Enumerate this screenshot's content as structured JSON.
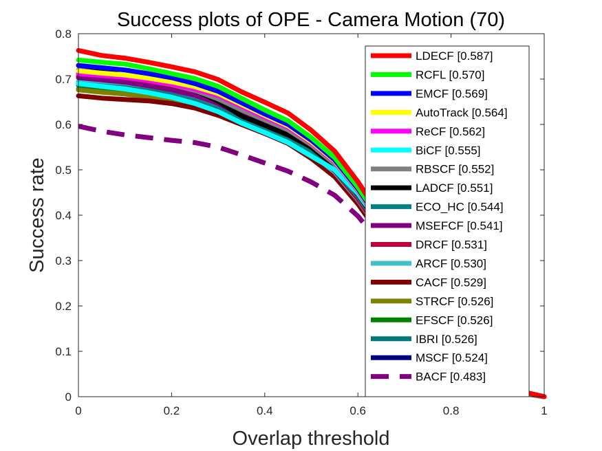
{
  "chart_data": {
    "type": "line",
    "title": "Success plots of OPE - Camera Motion (70)",
    "xlabel": "Overlap threshold",
    "ylabel": "Success rate",
    "xlim": [
      0,
      1
    ],
    "ylim": [
      0,
      0.8
    ],
    "xticks": [
      "0",
      "0.2",
      "0.4",
      "0.6",
      "0.8",
      "1"
    ],
    "yticks": [
      "0",
      "0.1",
      "0.2",
      "0.3",
      "0.4",
      "0.5",
      "0.6",
      "0.7",
      "0.8"
    ],
    "grid": false,
    "legend_position": "top-right",
    "x": [
      0,
      0.05,
      0.1,
      0.15,
      0.2,
      0.25,
      0.3,
      0.35,
      0.4,
      0.45,
      0.5,
      0.55,
      0.6,
      0.65,
      0.7,
      0.75,
      0.8,
      0.85,
      0.9,
      0.95,
      1.0
    ],
    "series": [
      {
        "name": "LDECF [0.587]",
        "color": "#ff0000",
        "dashed": false,
        "values": [
          0.763,
          0.752,
          0.746,
          0.737,
          0.727,
          0.716,
          0.699,
          0.672,
          0.649,
          0.625,
          0.587,
          0.541,
          0.474,
          0.395,
          0.31,
          0.225,
          0.15,
          0.085,
          0.04,
          0.012,
          0.0
        ]
      },
      {
        "name": "RCFL [0.570]",
        "color": "#00ff00",
        "dashed": false,
        "values": [
          0.742,
          0.737,
          0.733,
          0.723,
          0.712,
          0.701,
          0.684,
          0.658,
          0.632,
          0.608,
          0.571,
          0.527,
          0.462,
          0.385,
          0.302,
          0.22,
          0.146,
          0.082,
          0.038,
          0.011,
          0.0
        ]
      },
      {
        "name": "EMCF [0.569]",
        "color": "#0000ff",
        "dashed": false,
        "values": [
          0.73,
          0.725,
          0.72,
          0.712,
          0.703,
          0.69,
          0.673,
          0.648,
          0.623,
          0.6,
          0.565,
          0.522,
          0.458,
          0.382,
          0.3,
          0.218,
          0.145,
          0.082,
          0.038,
          0.011,
          0.0
        ]
      },
      {
        "name": "AutoTrack [0.564]",
        "color": "#ffff00",
        "dashed": false,
        "values": [
          0.718,
          0.713,
          0.709,
          0.702,
          0.694,
          0.683,
          0.668,
          0.644,
          0.62,
          0.597,
          0.562,
          0.52,
          0.456,
          0.38,
          0.298,
          0.216,
          0.143,
          0.081,
          0.037,
          0.011,
          0.0
        ]
      },
      {
        "name": "ReCF [0.562]",
        "color": "#ff00ff",
        "dashed": false,
        "values": [
          0.712,
          0.708,
          0.704,
          0.697,
          0.689,
          0.678,
          0.664,
          0.64,
          0.616,
          0.594,
          0.56,
          0.518,
          0.454,
          0.378,
          0.296,
          0.215,
          0.142,
          0.08,
          0.037,
          0.011,
          0.0
        ]
      },
      {
        "name": "BiCF [0.555]",
        "color": "#00ffff",
        "dashed": false,
        "values": [
          0.69,
          0.684,
          0.678,
          0.67,
          0.66,
          0.646,
          0.628,
          0.603,
          0.582,
          0.56,
          0.53,
          0.5,
          0.448,
          0.376,
          0.295,
          0.214,
          0.141,
          0.08,
          0.036,
          0.01,
          0.0
        ]
      },
      {
        "name": "RBSCF [0.552]",
        "color": "#808080",
        "dashed": false,
        "values": [
          0.72,
          0.712,
          0.705,
          0.697,
          0.688,
          0.675,
          0.656,
          0.632,
          0.61,
          0.588,
          0.555,
          0.513,
          0.45,
          0.376,
          0.294,
          0.213,
          0.14,
          0.079,
          0.036,
          0.01,
          0.0
        ]
      },
      {
        "name": "LADCF [0.551]",
        "color": "#000000",
        "dashed": false,
        "values": [
          0.73,
          0.719,
          0.707,
          0.699,
          0.693,
          0.675,
          0.651,
          0.619,
          0.598,
          0.577,
          0.55,
          0.508,
          0.446,
          0.372,
          0.291,
          0.211,
          0.139,
          0.078,
          0.035,
          0.01,
          0.0
        ]
      },
      {
        "name": "ECO_HC [0.544]",
        "color": "#008080",
        "dashed": false,
        "values": [
          0.69,
          0.685,
          0.681,
          0.674,
          0.665,
          0.652,
          0.634,
          0.61,
          0.588,
          0.567,
          0.538,
          0.5,
          0.442,
          0.368,
          0.288,
          0.209,
          0.137,
          0.077,
          0.035,
          0.01,
          0.0
        ]
      },
      {
        "name": "MSEFCF [0.541]",
        "color": "#800080",
        "dashed": false,
        "values": [
          0.703,
          0.698,
          0.693,
          0.685,
          0.676,
          0.664,
          0.646,
          0.622,
          0.6,
          0.578,
          0.545,
          0.504,
          0.443,
          0.369,
          0.288,
          0.208,
          0.136,
          0.076,
          0.034,
          0.01,
          0.0
        ]
      },
      {
        "name": "DRCF [0.531]",
        "color": "#c0003c",
        "dashed": false,
        "values": [
          0.706,
          0.701,
          0.696,
          0.688,
          0.678,
          0.665,
          0.646,
          0.621,
          0.597,
          0.574,
          0.54,
          0.498,
          0.436,
          0.362,
          0.282,
          0.203,
          0.132,
          0.073,
          0.033,
          0.009,
          0.0
        ]
      },
      {
        "name": "ARCF [0.530]",
        "color": "#40c0c8",
        "dashed": false,
        "values": [
          0.695,
          0.69,
          0.685,
          0.677,
          0.667,
          0.655,
          0.637,
          0.613,
          0.591,
          0.569,
          0.536,
          0.495,
          0.434,
          0.36,
          0.28,
          0.202,
          0.131,
          0.073,
          0.032,
          0.009,
          0.0
        ]
      },
      {
        "name": "CACF [0.529]",
        "color": "#800000",
        "dashed": false,
        "values": [
          0.663,
          0.658,
          0.655,
          0.652,
          0.646,
          0.636,
          0.62,
          0.6,
          0.58,
          0.558,
          0.525,
          0.485,
          0.425,
          0.353,
          0.275,
          0.198,
          0.128,
          0.071,
          0.031,
          0.009,
          0.0
        ]
      },
      {
        "name": "STRCF [0.526]",
        "color": "#808000",
        "dashed": false,
        "values": [
          0.676,
          0.671,
          0.667,
          0.66,
          0.652,
          0.641,
          0.625,
          0.604,
          0.583,
          0.562,
          0.53,
          0.49,
          0.43,
          0.357,
          0.278,
          0.2,
          0.13,
          0.072,
          0.032,
          0.009,
          0.0
        ]
      },
      {
        "name": "EFSCF [0.526]",
        "color": "#008000",
        "dashed": false,
        "values": [
          0.678,
          0.673,
          0.668,
          0.661,
          0.653,
          0.642,
          0.626,
          0.605,
          0.584,
          0.563,
          0.531,
          0.491,
          0.43,
          0.357,
          0.278,
          0.2,
          0.13,
          0.072,
          0.032,
          0.009,
          0.0
        ]
      },
      {
        "name": "IBRI [0.526]",
        "color": "#007878",
        "dashed": false,
        "values": [
          0.686,
          0.681,
          0.676,
          0.669,
          0.66,
          0.648,
          0.631,
          0.609,
          0.587,
          0.566,
          0.533,
          0.492,
          0.431,
          0.358,
          0.279,
          0.201,
          0.13,
          0.072,
          0.032,
          0.009,
          0.0
        ]
      },
      {
        "name": "MSCF [0.524]",
        "color": "#000080",
        "dashed": false,
        "values": [
          0.689,
          0.683,
          0.677,
          0.669,
          0.66,
          0.647,
          0.629,
          0.605,
          0.583,
          0.56,
          0.526,
          0.485,
          0.425,
          0.353,
          0.275,
          0.198,
          0.128,
          0.071,
          0.031,
          0.009,
          0.0
        ]
      },
      {
        "name": "BACF [0.483]",
        "color": "#800080",
        "dashed": true,
        "values": [
          0.596,
          0.585,
          0.577,
          0.571,
          0.565,
          0.56,
          0.55,
          0.533,
          0.515,
          0.497,
          0.473,
          0.444,
          0.398,
          0.335,
          0.262,
          0.189,
          0.122,
          0.067,
          0.029,
          0.008,
          0.0
        ]
      }
    ]
  }
}
